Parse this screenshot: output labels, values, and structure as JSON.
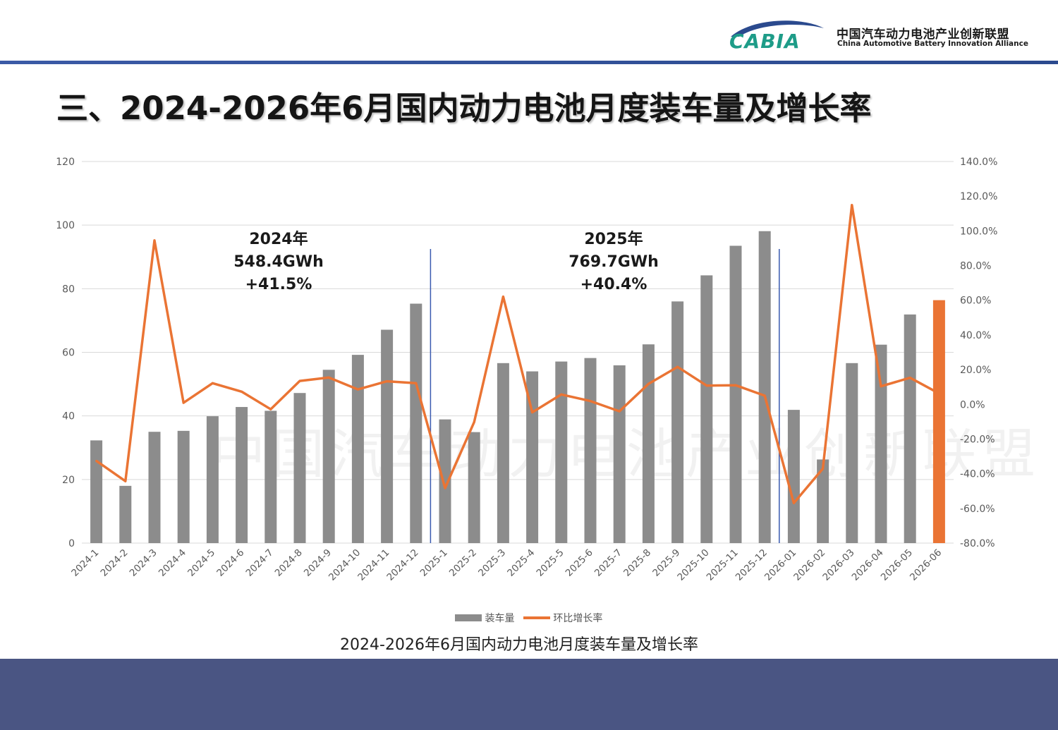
{
  "header": {
    "org_name_cn": "中国汽车动力电池产业创新联盟",
    "org_name_en": "China Automotive Battery Innovation Alliance",
    "logo_text": "CABIA"
  },
  "page_title": "三、2024-2026年6月国内动力电池月度装车量及增长率",
  "watermark_text": "中国汽车动力电池产业创新联盟",
  "caption": "2024-2026年6月国内动力电池月度装车量及增长率",
  "annotations": [
    {
      "year": "2024年",
      "total": "548.4GWh",
      "growth": "+41.5%"
    },
    {
      "year": "2025年",
      "total": "769.7GWh",
      "growth": "+40.4%"
    }
  ],
  "colors": {
    "bar": "#8c8c8c",
    "bar_highlight": "#ea7434",
    "line": "#ea7434",
    "divider": "#3a5bb0",
    "footer": "#4a5583"
  },
  "chart_data": {
    "type": "bar",
    "categories": [
      "2024-1",
      "2024-2",
      "2024-3",
      "2024-4",
      "2024-5",
      "2024-6",
      "2024-7",
      "2024-8",
      "2024-9",
      "2024-10",
      "2024-11",
      "2024-12",
      "2025-1",
      "2025-2",
      "2025-3",
      "2025-4",
      "2025-5",
      "2025-6",
      "2025-7",
      "2025-8",
      "2025-9",
      "2025-10",
      "2025-11",
      "2025-12",
      "2026-01",
      "2026-02",
      "2026-03",
      "2026-04",
      "2026-05",
      "2026-06"
    ],
    "series": [
      {
        "name": "装车量",
        "type": "bar",
        "axis": "left",
        "values": [
          32.3,
          18.0,
          35.0,
          35.3,
          39.9,
          42.8,
          41.6,
          47.2,
          54.5,
          59.2,
          67.1,
          75.3,
          38.9,
          34.9,
          56.6,
          54.0,
          57.1,
          58.2,
          55.9,
          62.5,
          76.0,
          84.2,
          93.5,
          98.1,
          41.9,
          26.3,
          56.6,
          62.4,
          71.9,
          76.4
        ]
      },
      {
        "name": "环比增长率",
        "type": "line",
        "axis": "right",
        "values": [
          -32.6,
          -44.3,
          94.5,
          0.9,
          12.2,
          7.3,
          -2.8,
          13.5,
          15.5,
          8.6,
          13.3,
          12.2,
          -48.3,
          -10.3,
          62.1,
          -4.6,
          5.7,
          1.9,
          -4.0,
          11.8,
          21.6,
          10.8,
          11.0,
          5.0,
          -56.9,
          -37.1,
          114.9,
          10.4,
          15.3,
          6.3
        ]
      }
    ],
    "highlight_index": 29,
    "y_left": {
      "min": 0,
      "max": 120,
      "ticks": [
        "0",
        "20",
        "40",
        "60",
        "80",
        "100",
        "120"
      ]
    },
    "y_right": {
      "min": -80,
      "max": 140,
      "ticks": [
        "-80.0%",
        "-60.0%",
        "-40.0%",
        "-20.0%",
        "0.0%",
        "20.0%",
        "40.0%",
        "60.0%",
        "80.0%",
        "100.0%",
        "120.0%",
        "140.0%"
      ]
    },
    "dividers_after_index": [
      11,
      23
    ],
    "legend": [
      "装车量",
      "环比增长率"
    ],
    "legend_position": "bottom",
    "grid": true,
    "xlabel": "",
    "ylabel": ""
  }
}
